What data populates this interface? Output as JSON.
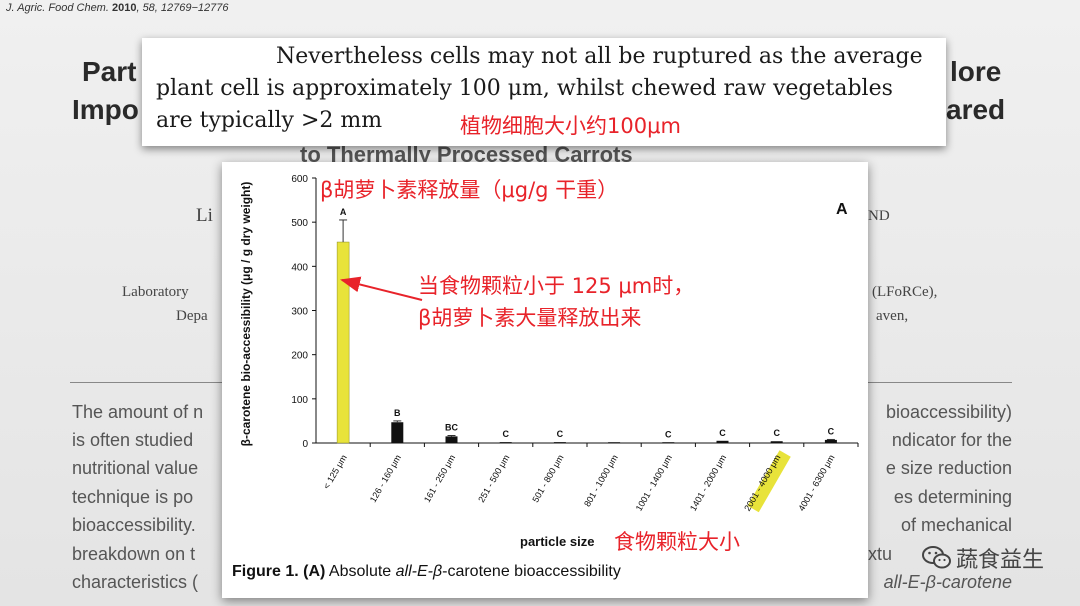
{
  "citation": {
    "journal": "J. Agric. Food Chem.",
    "year": "2010",
    "rest": ", 58, 12769−12776"
  },
  "background": {
    "title_left_1": "Part",
    "title_left_2": "Impo",
    "title_right_1": "lore",
    "title_right_2": "ared",
    "title_bottom": "to Thermally Processed Carrots",
    "side_left_1": "Laboratory",
    "side_left_2": "Depa",
    "side_right_1": "(LFoRCe),",
    "side_right_2": "aven,",
    "side_li": "Li",
    "side_nd": "ND",
    "body_left": [
      "The amount of n",
      "is often studied",
      "nutritional value",
      "technique is po",
      "bioaccessibility.",
      "breakdown on t",
      "characteristics ("
    ],
    "body_right": [
      "bioaccessibility)",
      "ndicator for the",
      "e size reduction",
      "es determining",
      "of mechanical",
      "xtu",
      "all-E-β-carotene"
    ]
  },
  "quote": {
    "line1": "Nevertheless cells may not all be ruptured as the average",
    "line2": "plant cell is approximately 100 μm, whilst chewed raw vegetables",
    "line3": "are typically >2 mm",
    "annotation": "植物细胞大小约100μm"
  },
  "chart_data": {
    "type": "bar",
    "panel_label": "A",
    "ylabel": "β-carotene bio-accessibility (μg / g dry weight)",
    "xlabel": "particle size",
    "ylim": [
      0,
      600
    ],
    "yticks": [
      0,
      100,
      200,
      300,
      400,
      500,
      600
    ],
    "categories": [
      "< 125 μm",
      "126 - 160 μm",
      "161 - 250 μm",
      "251 - 500 μm",
      "501 - 800 μm",
      "801 - 1000 μm",
      "1001 - 1400 μm",
      "1401 - 2000 μm",
      "2001 - 4000 μm",
      "4001 - 6300 μm"
    ],
    "values": [
      455,
      47,
      15,
      2,
      2,
      0,
      1,
      5,
      4,
      7
    ],
    "errors": [
      50,
      3,
      2,
      0,
      0,
      0,
      0,
      0,
      0,
      1
    ],
    "letters": [
      "A",
      "B",
      "BC",
      "C",
      "C",
      "",
      "C",
      "C",
      "C",
      "C"
    ],
    "highlight_index": 0,
    "highlight_tick_index": 8,
    "bar_color": "#111111",
    "highlight_color": "#e8e33a"
  },
  "annotations": {
    "yaxis_label_cn": "β胡萝卜素释放量（μg/g 干重）",
    "arrow_text_1": "当食物颗粒小于 125 μm时，",
    "arrow_text_2": "β胡萝卜素大量释放出来",
    "xaxis_label_cn": "食物颗粒大小"
  },
  "caption": {
    "prefix": "Figure 1.",
    "panel": "(A)",
    "text1": " Absolute ",
    "italic": "all-E-β",
    "text2": "-carotene  bioaccessibility"
  },
  "watermark": {
    "label": "蔬食益生",
    "icon": "wechat-icon"
  },
  "colors": {
    "red": "#e8232a"
  }
}
